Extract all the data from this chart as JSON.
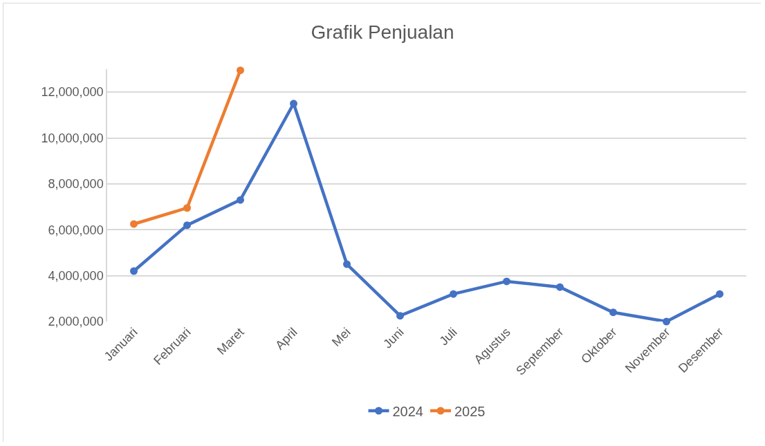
{
  "chart_data": {
    "type": "line",
    "title": "Grafik Penjualan",
    "categories": [
      "Januari",
      "Februari",
      "Maret",
      "April",
      "Mei",
      "Juni",
      "Juli",
      "Agustus",
      "September",
      "Oktober",
      "November",
      "Desember"
    ],
    "series": [
      {
        "name": "2024",
        "color": "#4472c4",
        "values": [
          4200000,
          6200000,
          7300000,
          11500000,
          4500000,
          2250000,
          3200000,
          3750000,
          3500000,
          2400000,
          2000000,
          3200000
        ]
      },
      {
        "name": "2025",
        "color": "#ed7d31",
        "values": [
          6250000,
          6950000,
          12950000,
          null,
          null,
          null,
          null,
          null,
          null,
          null,
          null,
          null
        ]
      }
    ],
    "ylim": [
      2000000,
      13000000
    ],
    "yticks": [
      {
        "value": 2000000,
        "label": "2,000,000"
      },
      {
        "value": 4000000,
        "label": "4,000,000"
      },
      {
        "value": 6000000,
        "label": "6,000,000"
      },
      {
        "value": 8000000,
        "label": "8,000,000"
      },
      {
        "value": 10000000,
        "label": "10,000,000"
      },
      {
        "value": 12000000,
        "label": "12,000,000"
      }
    ],
    "grid": "y",
    "legend": "bottom",
    "marker": "circle",
    "line_style": "solid"
  }
}
